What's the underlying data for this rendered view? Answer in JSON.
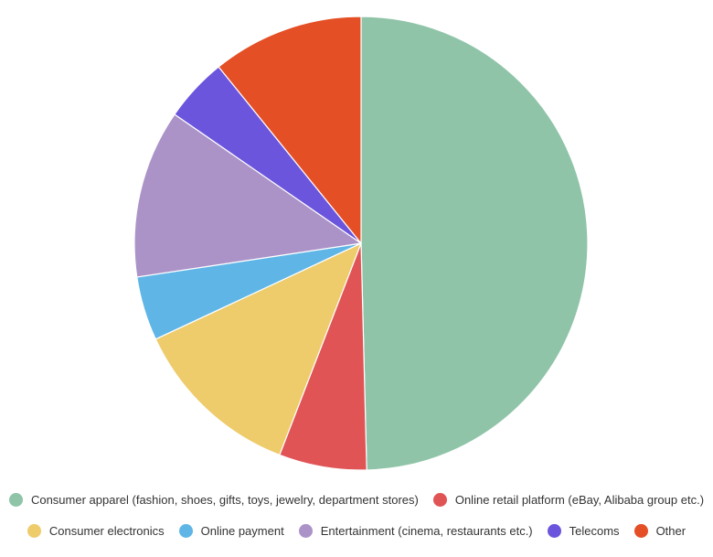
{
  "chart_data": {
    "type": "pie",
    "title": "",
    "legend_position": "bottom",
    "slices": [
      {
        "label": "Consumer apparel (fashion, shoes, gifts, toys, jewelry, department stores)",
        "value": 50,
        "color": "#8fc4a8"
      },
      {
        "label": "Online retail platform (eBay, Alibaba group etc.)",
        "value": 6.3,
        "color": "#e05456"
      },
      {
        "label": "Consumer electronics",
        "value": 12.3,
        "color": "#eecb6b"
      },
      {
        "label": "Online payment",
        "value": 4.6,
        "color": "#5fb6e6"
      },
      {
        "label": "Entertainment (cinema, restaurants etc.)",
        "value": 12.1,
        "color": "#ab93c8"
      },
      {
        "label": "Telecoms",
        "value": 4.6,
        "color": "#6c55dd"
      },
      {
        "label": "Other",
        "value": 10.9,
        "color": "#e44f26"
      }
    ]
  }
}
